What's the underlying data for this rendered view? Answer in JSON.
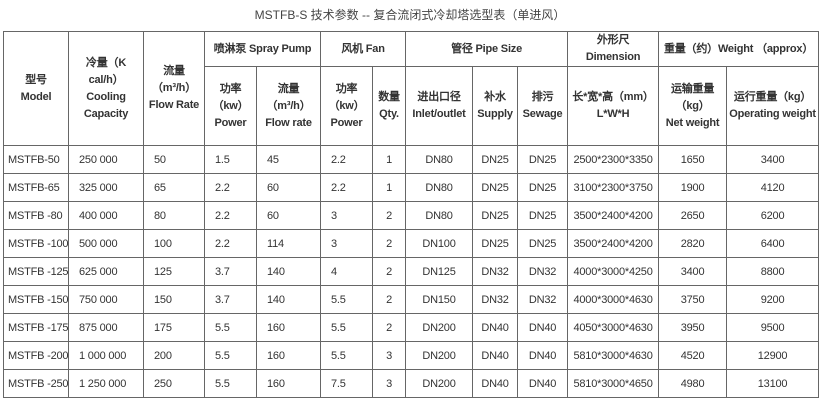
{
  "title": "MSTFB-S 技术参数 -- 复合流闭式冷却塔选型表（单进风）",
  "headers": {
    "model": [
      "型号",
      "Model"
    ],
    "cooling": [
      "冷量（K",
      "cal/h）",
      "Cooling",
      "Capacity"
    ],
    "flow": [
      "流量",
      "（m³/h）",
      "Flow Rate"
    ],
    "spray_pump": "喷淋泵 Spray Pump",
    "fan": "风机 Fan",
    "pipe": "管径 Pipe Size",
    "dimension": "外形尺Dimension",
    "weight": "重量（约）Weight （approx）",
    "pump_power": [
      "功率",
      "（kw）",
      "Power"
    ],
    "pump_flow": [
      "流量（m³/h）",
      "Flow rate"
    ],
    "fan_power": [
      "功率",
      "（kw）",
      "Power"
    ],
    "fan_qty": [
      "数量",
      "Qty."
    ],
    "inlet": [
      "进出口径",
      "Inlet/outlet"
    ],
    "supply": [
      "补水",
      "Supply"
    ],
    "sewage": [
      "排污",
      "Sewage"
    ],
    "lwh": [
      "长*宽*高（mm）",
      "L*W*H"
    ],
    "net": [
      "运输重量",
      "（kg）",
      "Net weight"
    ],
    "operating": [
      "运行重量（kg）",
      "Operating weight"
    ]
  },
  "rows": [
    [
      "MSTFB-50",
      "250 000",
      "50",
      "1.5",
      "45",
      "2.2",
      "1",
      "DN80",
      "DN25",
      "DN25",
      "2500*2300*3350",
      "1650",
      "3400"
    ],
    [
      "MSTFB-65",
      "325 000",
      "65",
      "2.2",
      "60",
      "2.2",
      "1",
      "DN80",
      "DN25",
      "DN25",
      "3100*2300*3750",
      "1900",
      "4120"
    ],
    [
      "MSTFB -80",
      "400 000",
      "80",
      "2.2",
      "60",
      "3",
      "2",
      "DN80",
      "DN25",
      "DN25",
      "3500*2400*4200",
      "2650",
      "6200"
    ],
    [
      "MSTFB -100",
      "500 000",
      "100",
      "2.2",
      "114",
      "3",
      "2",
      "DN100",
      "DN25",
      "DN25",
      "3500*2400*4200",
      "2820",
      "6400"
    ],
    [
      "MSTFB -125",
      "625 000",
      "125",
      "3.7",
      "140",
      "4",
      "2",
      "DN125",
      "DN32",
      "DN32",
      "4000*3000*4250",
      "3400",
      "8800"
    ],
    [
      "MSTFB -150",
      "750 000",
      "150",
      "3.7",
      "140",
      "5.5",
      "2",
      "DN150",
      "DN32",
      "DN32",
      "4000*3000*4630",
      "3750",
      "9200"
    ],
    [
      "MSTFB -175",
      "875 000",
      "175",
      "5.5",
      "160",
      "5.5",
      "2",
      "DN200",
      "DN40",
      "DN40",
      "4050*3000*4630",
      "3950",
      "9500"
    ],
    [
      "MSTFB -200",
      "1 000 000",
      "200",
      "5.5",
      "160",
      "5.5",
      "3",
      "DN200",
      "DN40",
      "DN40",
      "5810*3000*4630",
      "4520",
      "12900"
    ],
    [
      "MSTFB -250",
      "1 250 000",
      "250",
      "5.5",
      "160",
      "7.5",
      "3",
      "DN200",
      "DN40",
      "DN40",
      "5810*3000*4650",
      "4980",
      "13100"
    ]
  ]
}
